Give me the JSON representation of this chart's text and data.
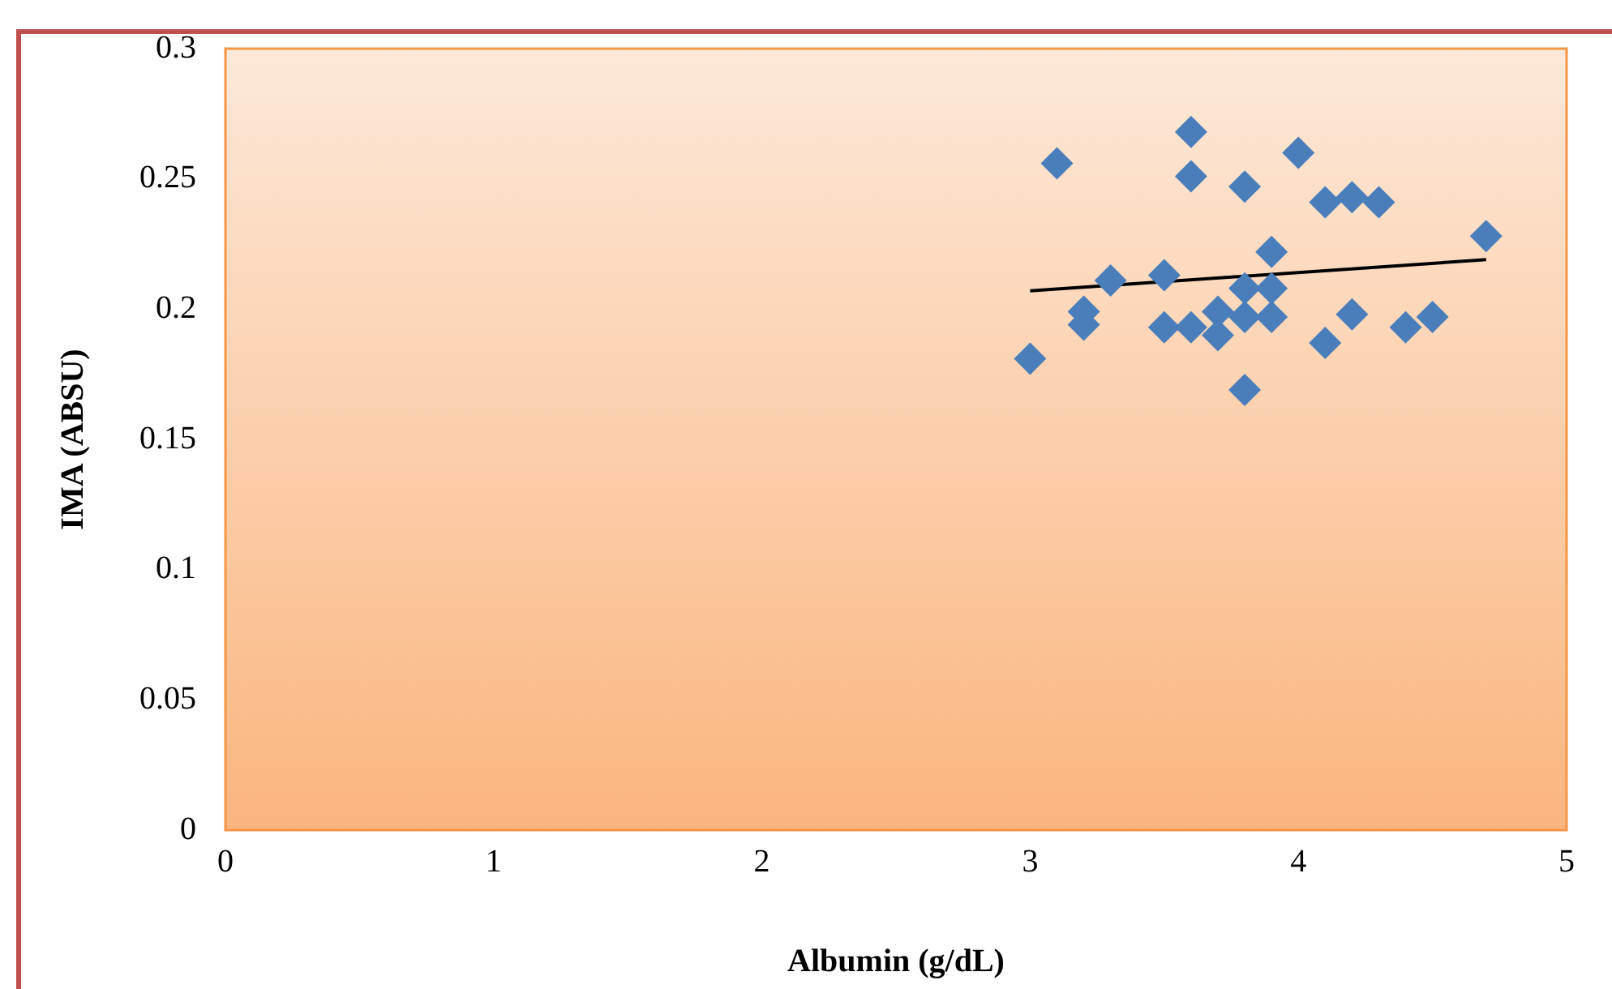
{
  "chart_data": {
    "type": "scatter",
    "xlabel": "Albumin (g/dL)",
    "ylabel": "IMA (ABSU)",
    "xlim": [
      0,
      5
    ],
    "xticks": [
      0,
      1,
      2,
      3,
      4,
      5
    ],
    "ylim": [
      0,
      0.3
    ],
    "yticks": [
      0,
      0.05,
      0.1,
      0.15,
      0.2,
      0.25,
      0.3
    ],
    "grid": false,
    "legend": false,
    "marker": "diamond",
    "series": [
      {
        "type": "scatter",
        "color": "#4a7ebb",
        "x": [
          3.0,
          3.1,
          3.2,
          3.2,
          3.3,
          3.5,
          3.5,
          3.6,
          3.6,
          3.6,
          3.7,
          3.7,
          3.8,
          3.8,
          3.8,
          3.8,
          3.9,
          3.9,
          3.9,
          4.0,
          4.1,
          4.1,
          4.2,
          4.2,
          4.3,
          4.4,
          4.5,
          4.7
        ],
        "values": [
          0.181,
          0.256,
          0.199,
          0.194,
          0.211,
          0.213,
          0.193,
          0.268,
          0.251,
          0.193,
          0.199,
          0.19,
          0.247,
          0.208,
          0.197,
          0.169,
          0.222,
          0.208,
          0.197,
          0.26,
          0.241,
          0.187,
          0.243,
          0.198,
          0.241,
          0.193,
          0.197,
          0.228
        ]
      },
      {
        "type": "line",
        "color": "#000000",
        "marker": "none",
        "x": [
          3.0,
          4.7
        ],
        "values": [
          0.207,
          0.219
        ]
      }
    ]
  }
}
